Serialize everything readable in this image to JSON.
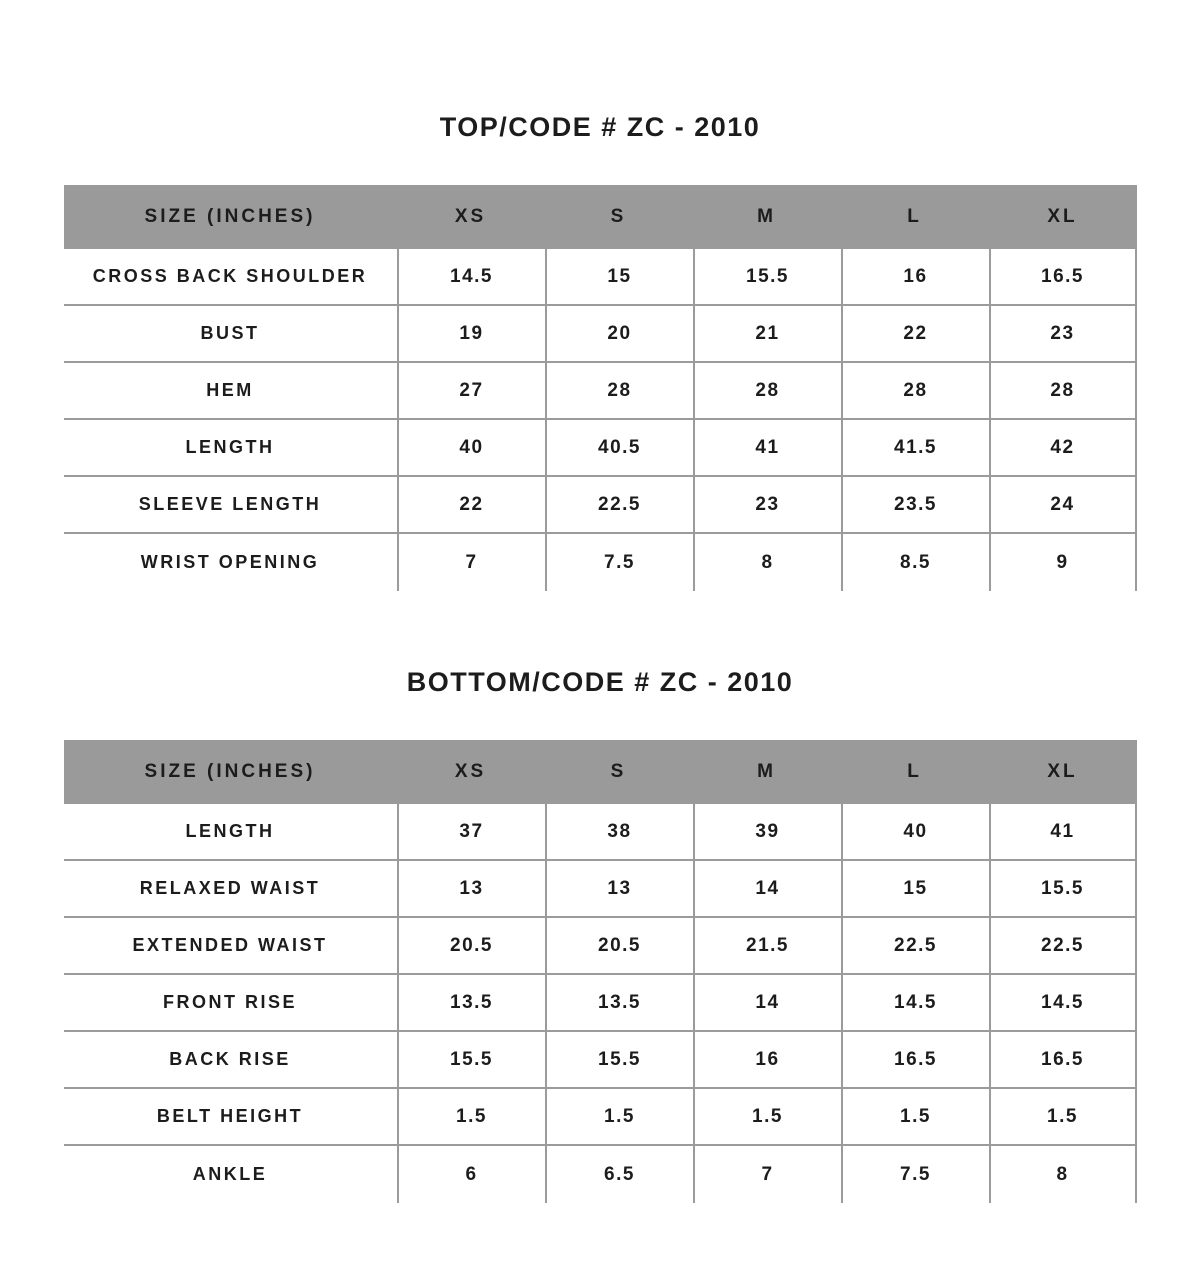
{
  "colors": {
    "page_bg": "#ffffff",
    "header_bg": "#9a9a9a",
    "grid_line": "#9b9b9b",
    "text": "#1c1c1c"
  },
  "tables": [
    {
      "title": "TOP/CODE # ZC - 2010",
      "columns": [
        "SIZE (INCHES)",
        "XS",
        "S",
        "M",
        "L",
        "XL"
      ],
      "rows": [
        {
          "label": "CROSS BACK SHOULDER",
          "values": [
            "14.5",
            "15",
            "15.5",
            "16",
            "16.5"
          ]
        },
        {
          "label": "BUST",
          "values": [
            "19",
            "20",
            "21",
            "22",
            "23"
          ]
        },
        {
          "label": "HEM",
          "values": [
            "27",
            "28",
            "28",
            "28",
            "28"
          ]
        },
        {
          "label": "LENGTH",
          "values": [
            "40",
            "40.5",
            "41",
            "41.5",
            "42"
          ]
        },
        {
          "label": "SLEEVE LENGTH",
          "values": [
            "22",
            "22.5",
            "23",
            "23.5",
            "24"
          ]
        },
        {
          "label": "WRIST OPENING",
          "values": [
            "7",
            "7.5",
            "8",
            "8.5",
            "9"
          ]
        }
      ]
    },
    {
      "title": "BOTTOM/CODE # ZC - 2010",
      "columns": [
        "SIZE (INCHES)",
        "XS",
        "S",
        "M",
        "L",
        "XL"
      ],
      "rows": [
        {
          "label": "LENGTH",
          "values": [
            "37",
            "38",
            "39",
            "40",
            "41"
          ]
        },
        {
          "label": "RELAXED WAIST",
          "values": [
            "13",
            "13",
            "14",
            "15",
            "15.5"
          ]
        },
        {
          "label": "EXTENDED WAIST",
          "values": [
            "20.5",
            "20.5",
            "21.5",
            "22.5",
            "22.5"
          ]
        },
        {
          "label": "FRONT RISE",
          "values": [
            "13.5",
            "13.5",
            "14",
            "14.5",
            "14.5"
          ]
        },
        {
          "label": "BACK RISE",
          "values": [
            "15.5",
            "15.5",
            "16",
            "16.5",
            "16.5"
          ]
        },
        {
          "label": "BELT HEIGHT",
          "values": [
            "1.5",
            "1.5",
            "1.5",
            "1.5",
            "1.5"
          ]
        },
        {
          "label": "ANKLE",
          "values": [
            "6",
            "6.5",
            "7",
            "7.5",
            "8"
          ]
        }
      ]
    }
  ]
}
